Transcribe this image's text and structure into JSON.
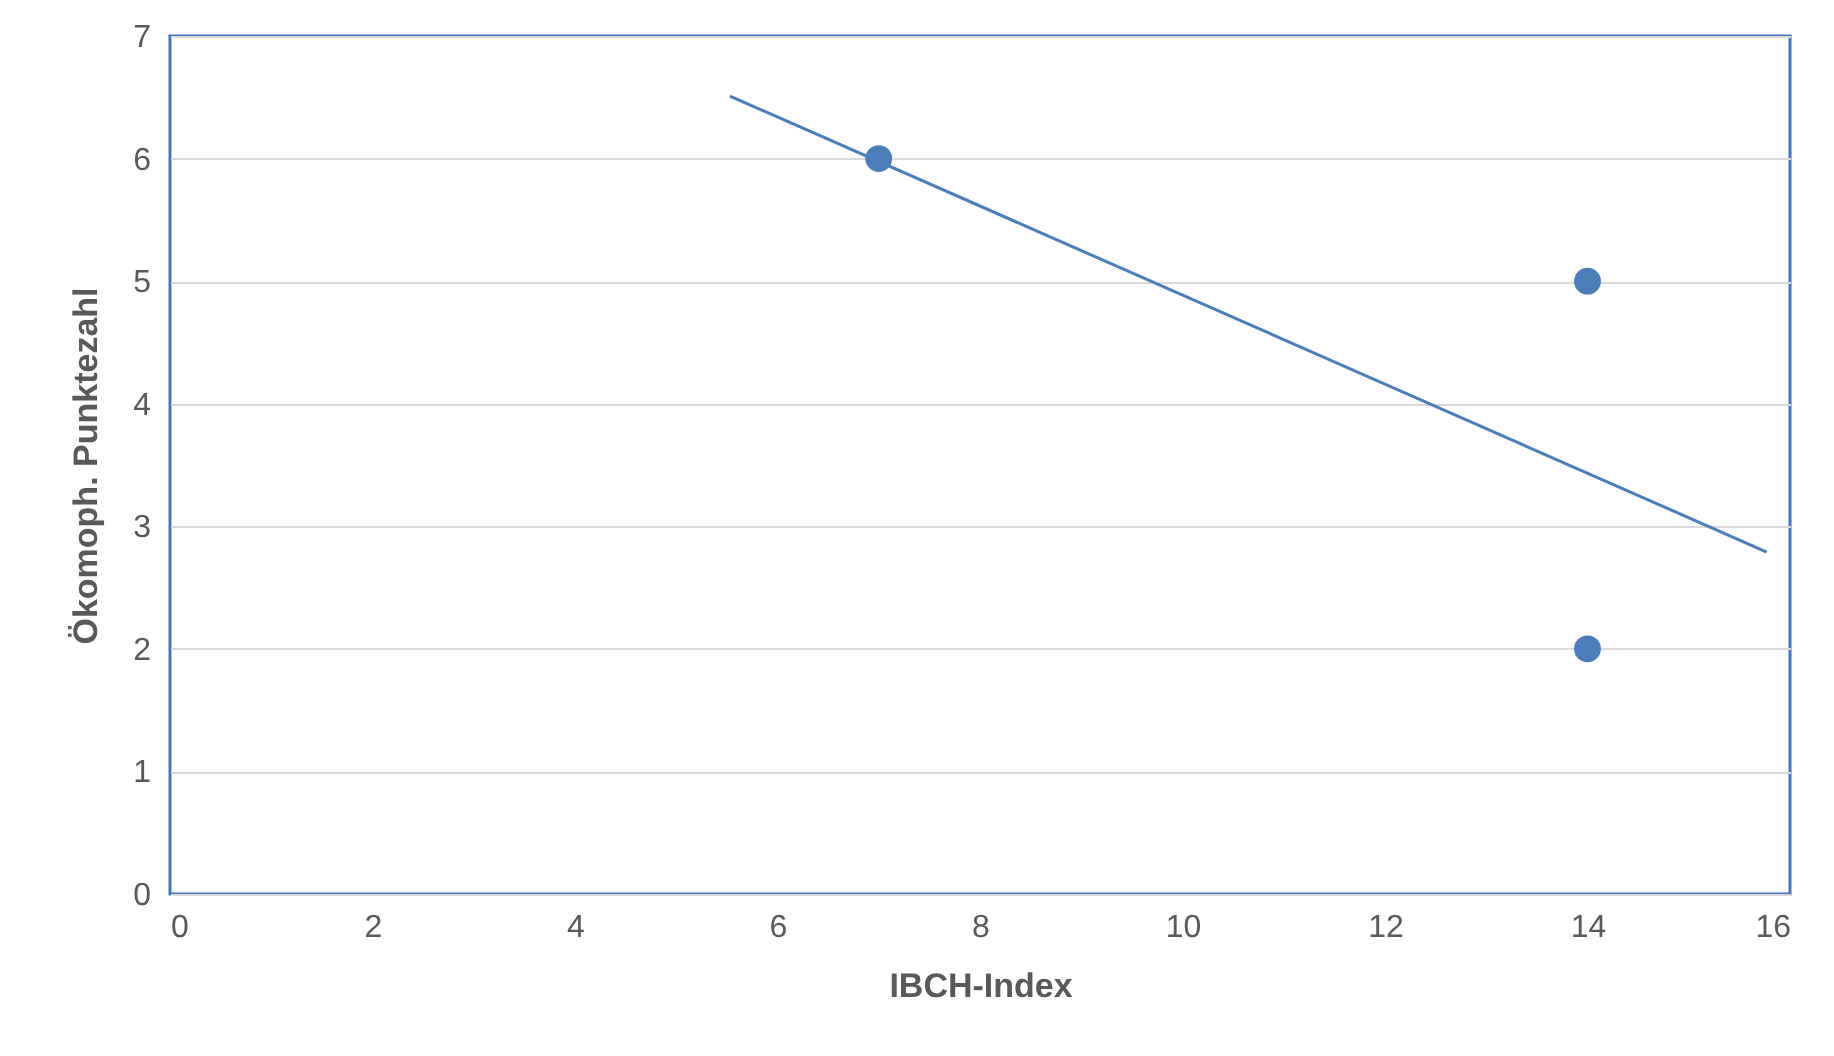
{
  "chart_data": {
    "type": "scatter",
    "xlabel": "IBCH-Index",
    "ylabel": "Ökomoph. Punktezahl",
    "series": [
      {
        "color": "#4a7ebb",
        "x": [
          7,
          14,
          14
        ],
        "values": [
          6,
          5,
          2
        ],
        "marker": "circle"
      },
      {
        "type": "line",
        "color": "#4a7ebb",
        "x": [
          5.53,
          15.77
        ],
        "values": [
          6.51,
          2.79
        ],
        "marker": "none",
        "line_style": "solid"
      }
    ],
    "xlim": [
      0,
      16
    ],
    "xticks": [
      0,
      2,
      4,
      6,
      8,
      10,
      12,
      14,
      16
    ],
    "ylim": [
      0,
      7
    ],
    "yticks": [
      0,
      1,
      2,
      3,
      4,
      5,
      6,
      7
    ],
    "grid": "y"
  }
}
